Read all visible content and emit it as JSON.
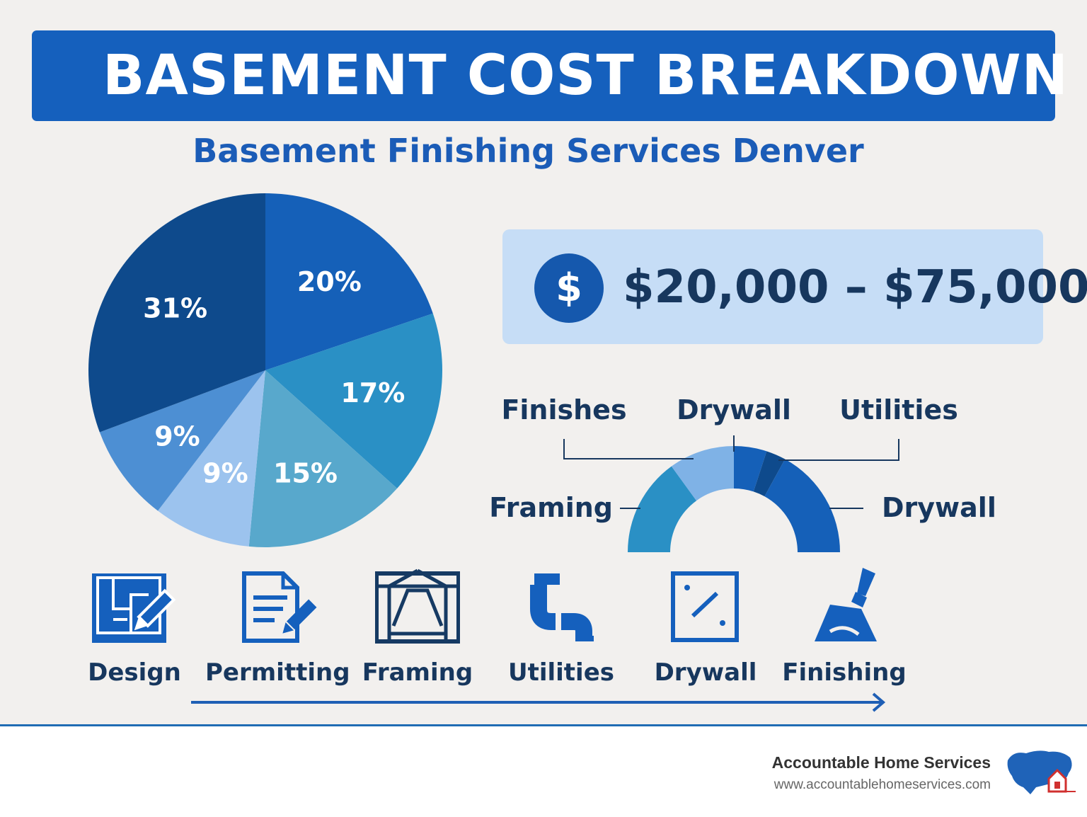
{
  "header": {
    "title": "BASEMENT COST BREAKDOWN",
    "subtitle": "Basement Finishing Services Denver"
  },
  "price": {
    "icon": "$",
    "range": "$20,000 – $75,000"
  },
  "chart_data": [
    {
      "type": "pie",
      "values": [
        20,
        17,
        15,
        9,
        9,
        31
      ],
      "labels": [
        "20%",
        "17%",
        "15%",
        "9%",
        "9%",
        "31%"
      ],
      "colors": [
        "#1560b8",
        "#2a90c5",
        "#58a8cc",
        "#9cc3ee",
        "#4d8fd3",
        "#0e4a8c"
      ]
    },
    {
      "type": "half-donut",
      "segments": [
        {
          "label": "Framing",
          "value": 30,
          "color": "#2a90c5"
        },
        {
          "label": "Finishes",
          "value": 20,
          "color": "#7fb2e6"
        },
        {
          "label": "Drywall",
          "value": 10,
          "color": "#1560b8"
        },
        {
          "label": "Utilities",
          "value": 6,
          "color": "#0e4a8c"
        },
        {
          "label": "Drywall",
          "value": 34,
          "color": "#1560b8"
        }
      ],
      "callouts": [
        "Finishes",
        "Drywall",
        "Utilities",
        "Framing",
        "Drywall"
      ]
    }
  ],
  "steps": [
    {
      "label": "Design",
      "icon": "blueprint-pencil-icon"
    },
    {
      "label": "Permitting",
      "icon": "document-pencil-icon"
    },
    {
      "label": "Framing",
      "icon": "frame-icon"
    },
    {
      "label": "Utilities",
      "icon": "pipe-icon"
    },
    {
      "label": "Drywall",
      "icon": "drywall-panel-icon"
    },
    {
      "label": "Finishing",
      "icon": "trowel-icon"
    }
  ],
  "footer": {
    "company": "Accountable Home Services",
    "website": "www.accountablehomeservices.com"
  }
}
